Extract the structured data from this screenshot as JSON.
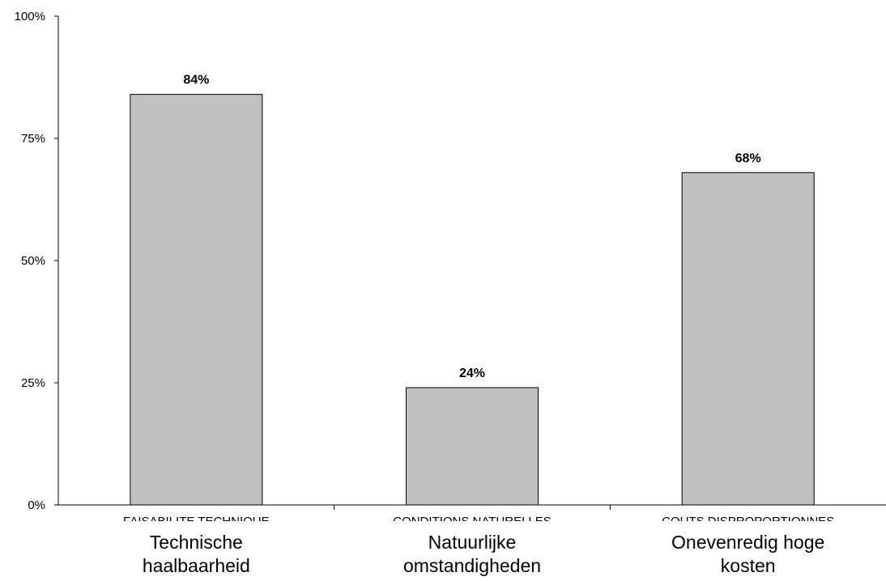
{
  "chart_data": {
    "type": "bar",
    "categories": [
      "Technische haalbaarheid",
      "Natuurlijke omstandigheden",
      "Onevenredig hoge kosten"
    ],
    "category_lines": [
      [
        "Technische",
        "haalbaarheid"
      ],
      [
        "Natuurlijke",
        "omstandigheden"
      ],
      [
        "Onevenredig hoge",
        "kosten"
      ]
    ],
    "underlying_labels": [
      "FAISABILITE TECHNIQUE",
      "CONDITIONS NATURELLES",
      "COUTS DISPROPORTIONNES"
    ],
    "values": [
      84,
      24,
      68
    ],
    "data_labels": [
      "84%",
      "24%",
      "68%"
    ],
    "title": "",
    "xlabel": "",
    "ylabel": "",
    "ylim": [
      0,
      100
    ],
    "yticks": [
      0,
      25,
      50,
      75,
      100
    ],
    "ytick_labels": [
      "0%",
      "25%",
      "50%",
      "75%",
      "100%"
    ],
    "grid": false,
    "legend": "none",
    "colors": {
      "bar_fill": "#c0c0c0",
      "bar_stroke": "#000000",
      "axis": "#000000"
    }
  }
}
